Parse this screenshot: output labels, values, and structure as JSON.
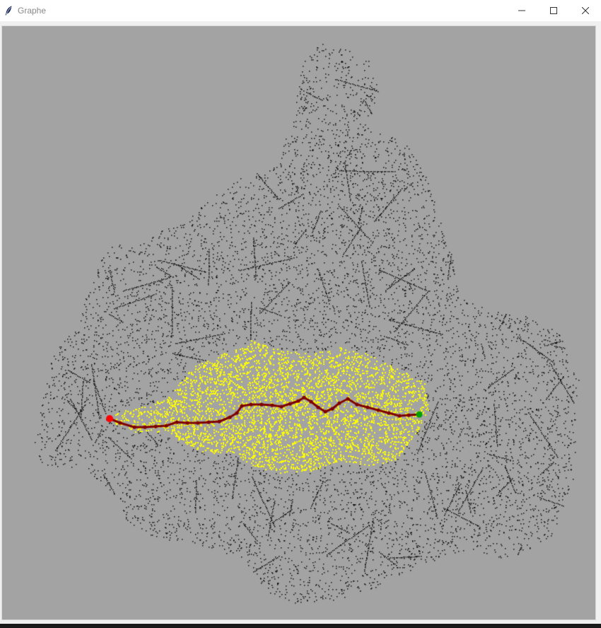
{
  "window": {
    "title": "Graphe",
    "icon": "feather-icon",
    "controls": [
      "minimize-icon",
      "maximize-icon",
      "close-icon"
    ]
  },
  "canvas": {
    "background": "#a3a3a3",
    "colors": {
      "nodes": "#000000",
      "explored": "#ffff00",
      "path": "#800000",
      "start": "#ff0000",
      "end": "#00a000"
    }
  }
}
